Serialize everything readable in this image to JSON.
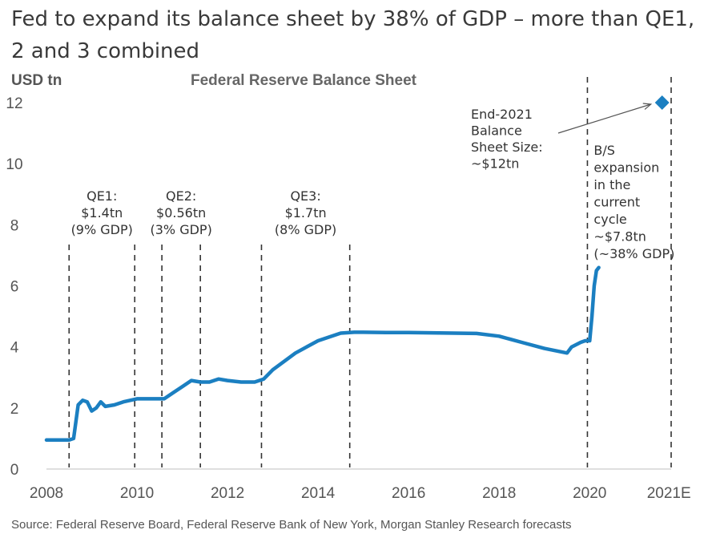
{
  "headline": "Fed to expand its balance sheet by 38% of GDP – more than QE1, 2 and 3 combined",
  "source": "Source: Federal Reserve Board, Federal Reserve Bank of New York, Morgan Stanley Research forecasts",
  "colors": {
    "line": "#1b7fc1",
    "marker": "#1b7fc1",
    "text": "#404040",
    "dash": "#333333"
  },
  "chart_data": {
    "type": "line",
    "title": "Federal Reserve Balance Sheet",
    "ylabel": "USD tn",
    "xlabel": "",
    "ylim": [
      0,
      12
    ],
    "xlim": [
      2008.0,
      2021.8
    ],
    "yticks": [
      0,
      2,
      4,
      6,
      8,
      10,
      12
    ],
    "xticks": [
      {
        "value": 2008,
        "label": "2008"
      },
      {
        "value": 2010,
        "label": "2010"
      },
      {
        "value": 2012,
        "label": "2012"
      },
      {
        "value": 2014,
        "label": "2014"
      },
      {
        "value": 2016,
        "label": "2016"
      },
      {
        "value": 2018,
        "label": "2018"
      },
      {
        "value": 2020,
        "label": "2020"
      },
      {
        "value": 2021.75,
        "label": "2021E"
      }
    ],
    "series": [
      {
        "name": "Federal Reserve Balance Sheet",
        "x": [
          2008.0,
          2008.5,
          2008.6,
          2008.7,
          2008.8,
          2008.9,
          2009.0,
          2009.1,
          2009.2,
          2009.3,
          2009.5,
          2009.7,
          2010.0,
          2010.3,
          2010.6,
          2010.8,
          2011.0,
          2011.2,
          2011.4,
          2011.6,
          2011.8,
          2012.0,
          2012.3,
          2012.6,
          2012.8,
          2013.0,
          2013.5,
          2014.0,
          2014.5,
          2014.8,
          2015.0,
          2015.5,
          2016.0,
          2016.5,
          2017.0,
          2017.5,
          2018.0,
          2018.5,
          2019.0,
          2019.5,
          2019.6,
          2019.8,
          2019.9,
          2020.0,
          2020.05,
          2020.1,
          2020.15,
          2020.2
        ],
        "values": [
          0.95,
          0.95,
          1.0,
          2.1,
          2.25,
          2.2,
          1.9,
          2.0,
          2.2,
          2.05,
          2.1,
          2.2,
          2.3,
          2.3,
          2.3,
          2.5,
          2.7,
          2.9,
          2.85,
          2.85,
          2.95,
          2.9,
          2.85,
          2.85,
          2.95,
          3.25,
          3.8,
          4.2,
          4.45,
          4.48,
          4.48,
          4.47,
          4.47,
          4.46,
          4.45,
          4.44,
          4.35,
          4.15,
          3.95,
          3.8,
          4.0,
          4.15,
          4.2,
          4.2,
          5.0,
          6.0,
          6.5,
          6.6
        ]
      }
    ],
    "forecast_point": {
      "x": 2021.6,
      "y": 12
    },
    "forecast_label": [
      "End-2021",
      "Balance",
      "Sheet Size:",
      "~$12tn"
    ],
    "annotations": [
      {
        "name": "qe1",
        "lines": [
          "QE1:",
          "$1.4tn",
          "(9% GDP)"
        ],
        "start": 2008.5,
        "end": 2009.95
      },
      {
        "name": "qe2",
        "lines": [
          "QE2:",
          "$0.56tn",
          "(3% GDP)"
        ],
        "start": 2010.55,
        "end": 2011.4
      },
      {
        "name": "qe3",
        "lines": [
          "QE3:",
          "$1.7tn",
          "(8% GDP)"
        ],
        "start": 2012.75,
        "end": 2014.7
      },
      {
        "name": "bs-expansion",
        "lines": [
          "B/S",
          "expansion",
          "in the",
          "current",
          "cycle",
          "~$7.8tn",
          "(~38% GDP)"
        ],
        "start": 2019.95,
        "end": 2021.8
      }
    ]
  }
}
